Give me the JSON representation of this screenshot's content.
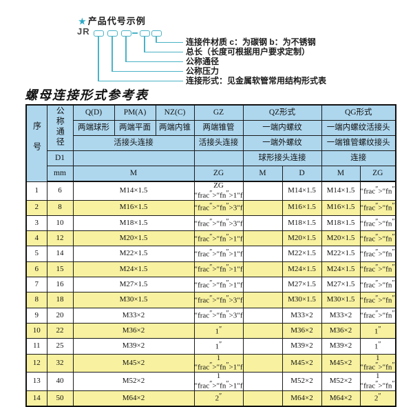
{
  "diagram": {
    "star_icon": "★",
    "title": "产品代号示例",
    "prefix": "JR",
    "labels": [
      "连接件材质  c：为碳钢  b：为不锈钢",
      "总长（长度可根据用户要求定制）",
      "公称通径",
      "公称压力",
      "连接形式：见金属软管常用结构形式表"
    ],
    "accent_color": "#49b2c6"
  },
  "table": {
    "title": "螺母连接形式参考表",
    "header": {
      "seq": "序号",
      "dn": "公称通径",
      "d1": "D1",
      "mm": "mm",
      "q": "Q(D)",
      "pm": "PM(A)",
      "nz": "NZ(C)",
      "gz": "GZ",
      "qz": "QZ形式",
      "qg": "QG形式",
      "q_desc": "两端球形",
      "pm_desc": "两端平面",
      "nz_desc": "两端内锥",
      "gz_desc": "两端锥管",
      "qz_desc1": "一端内螺纹",
      "qg_desc1": "一端内螺纹活接头",
      "union_conn": "活接头连接",
      "gz_conn": "活接头连接",
      "qz_desc2": "一端外螺纹",
      "qg_desc2": "一端锥管螺纹接头",
      "qz_conn": "球形接头连接",
      "qg_conn": "连接",
      "m": "M",
      "zg": "ZG",
      "qz_m": "M",
      "qz_d": "D",
      "qg_m": "M",
      "qg_zg": "ZG"
    },
    "rows": [
      {
        "no": "1",
        "dn": "6",
        "m": "M14×1.5",
        "zg": "ZG 1/4\"",
        "qz_m": "",
        "qz_d": "M14×1.5",
        "qg_m": "M14×1.5",
        "qg_zg": "1/4\""
      },
      {
        "no": "2",
        "dn": "8",
        "m": "M16×1.5",
        "zg": "3/8\"",
        "qz_m": "",
        "qz_d": "M16×1.5",
        "qg_m": "M16×1.5",
        "qg_zg": "3/8\""
      },
      {
        "no": "3",
        "dn": "10",
        "m": "M18×1.5",
        "zg": "3/8\"",
        "qz_m": "",
        "qz_d": "M18×1.5",
        "qg_m": "M18×1.5",
        "qg_zg": "3/8\""
      },
      {
        "no": "4",
        "dn": "12",
        "m": "M20×1.5",
        "zg": "1/2\"",
        "qz_m": "",
        "qz_d": "M20×1.5",
        "qg_m": "M20×1.5",
        "qg_zg": "1/2\""
      },
      {
        "no": "5",
        "dn": "14",
        "m": "M22×1.5",
        "zg": "1/2\"",
        "qz_m": "",
        "qz_d": "M22×1.5",
        "qg_m": "M22×1.5",
        "qg_zg": "1/2\""
      },
      {
        "no": "6",
        "dn": "15",
        "m": "M24×1.5",
        "zg": "1/2\"",
        "qz_m": "",
        "qz_d": "M24×1.5",
        "qg_m": "M24×1.5",
        "qg_zg": "1/2\""
      },
      {
        "no": "7",
        "dn": "16",
        "m": "M27×1.5",
        "zg": "1/2\"",
        "qz_m": "",
        "qz_d": "M27×1.5",
        "qg_m": "M27×1.5",
        "qg_zg": "1/2\""
      },
      {
        "no": "8",
        "dn": "18",
        "m": "M30×1.5",
        "zg": "3/4\"",
        "qz_m": "",
        "qz_d": "M30×1.5",
        "qg_m": "M30×1.5",
        "qg_zg": "3/4\""
      },
      {
        "no": "9",
        "dn": "20",
        "m": "M33×2",
        "zg": "3/4\"",
        "qz_m": "",
        "qz_d": "M33×2",
        "qg_m": "M33×2",
        "qg_zg": "3/4\""
      },
      {
        "no": "10",
        "dn": "22",
        "m": "M36×2",
        "zg": "1\"",
        "qz_m": "",
        "qz_d": "M36×2",
        "qg_m": "M36×2",
        "qg_zg": "1\""
      },
      {
        "no": "11",
        "dn": "25",
        "m": "M39×2",
        "zg": "1\"",
        "qz_m": "",
        "qz_d": "M39×2",
        "qg_m": "M39×2",
        "qg_zg": "1\""
      },
      {
        "no": "12",
        "dn": "32",
        "m": "M45×2",
        "zg": "1 1/4\"",
        "qz_m": "",
        "qz_d": "M45×2",
        "qg_m": "M45×2",
        "qg_zg": "1 1/4\""
      },
      {
        "no": "13",
        "dn": "40",
        "m": "M52×2",
        "zg": "1 1/2\"",
        "qz_m": "",
        "qz_d": "M52×2",
        "qg_m": "M52×2",
        "qg_zg": "1 1/2\""
      },
      {
        "no": "14",
        "dn": "50",
        "m": "M64×2",
        "zg": "2\"",
        "qz_m": "",
        "qz_d": "M64×2",
        "qg_m": "M64×2",
        "qg_zg": "2\""
      }
    ],
    "colors": {
      "header_bg": "#aed7ee",
      "row_alt_bg": "#f7f1a0",
      "row_bg": "#ffffff",
      "border": "#1a1a1a"
    }
  }
}
